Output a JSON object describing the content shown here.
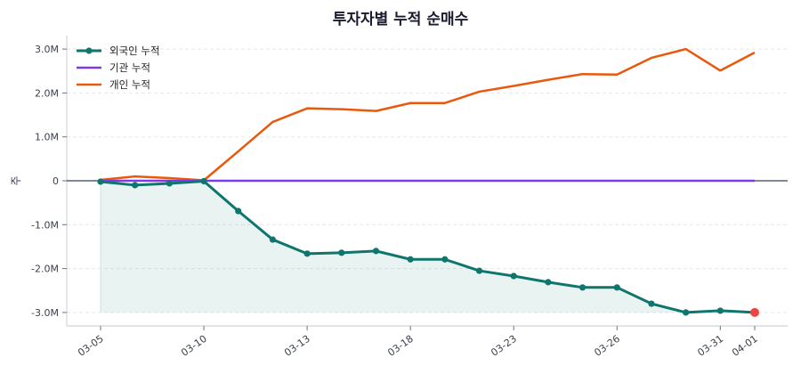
{
  "chart_data": {
    "type": "line",
    "title": "투자자별 누적 순매수",
    "xlabel": "",
    "ylabel": "주",
    "ylim": [
      -3.3,
      3.3
    ],
    "yticks": [
      3.0,
      2.0,
      1.0,
      0,
      -1.0,
      -2.0,
      -3.0
    ],
    "ytick_labels": [
      "3.0M",
      "2.0M",
      "1.0M",
      "0",
      "-1.0M",
      "-2.0M",
      "-3.0M"
    ],
    "x": [
      "03-05",
      "03-06",
      "03-09",
      "03-10",
      "03-11",
      "03-12",
      "03-13",
      "03-16",
      "03-17",
      "03-18",
      "03-19",
      "03-20",
      "03-23",
      "03-24",
      "03-25",
      "03-26",
      "03-27",
      "03-30",
      "03-31",
      "04-01"
    ],
    "xtick_labels": [
      "03-05",
      "03-10",
      "03-13",
      "03-18",
      "03-23",
      "03-26",
      "03-31",
      "04-01"
    ],
    "xtick_indices": [
      0,
      3,
      6,
      9,
      12,
      15,
      18,
      19
    ],
    "grid": true,
    "legend_position": "upper left",
    "series": [
      {
        "name": "외국인 누적",
        "color": "#0f766e",
        "marker": "circle",
        "fill": true,
        "values": [
          -0.02,
          -0.1,
          -0.06,
          -0.01,
          -0.69,
          -1.34,
          -1.66,
          -1.64,
          -1.6,
          -1.79,
          -1.79,
          -2.05,
          -2.17,
          -2.31,
          -2.43,
          -2.43,
          -2.8,
          -3.0,
          -2.96,
          -3.0
        ]
      },
      {
        "name": "기관 누적",
        "color": "#7c3aed",
        "marker": "none",
        "fill": false,
        "values": [
          0,
          0,
          0,
          0,
          0,
          0,
          0,
          0,
          0,
          0,
          0,
          0,
          0,
          0,
          0,
          0,
          0,
          0,
          0,
          0
        ]
      },
      {
        "name": "개인 누적",
        "color": "#ea580c",
        "marker": "none",
        "fill": false,
        "values": [
          0.02,
          0.1,
          0.06,
          0.01,
          0.67,
          1.34,
          1.65,
          1.63,
          1.59,
          1.77,
          1.77,
          2.03,
          2.16,
          2.3,
          2.43,
          2.42,
          2.8,
          3.0,
          2.51,
          2.92
        ]
      }
    ],
    "highlight_last_point_color": "#ef4444",
    "units": "M"
  }
}
